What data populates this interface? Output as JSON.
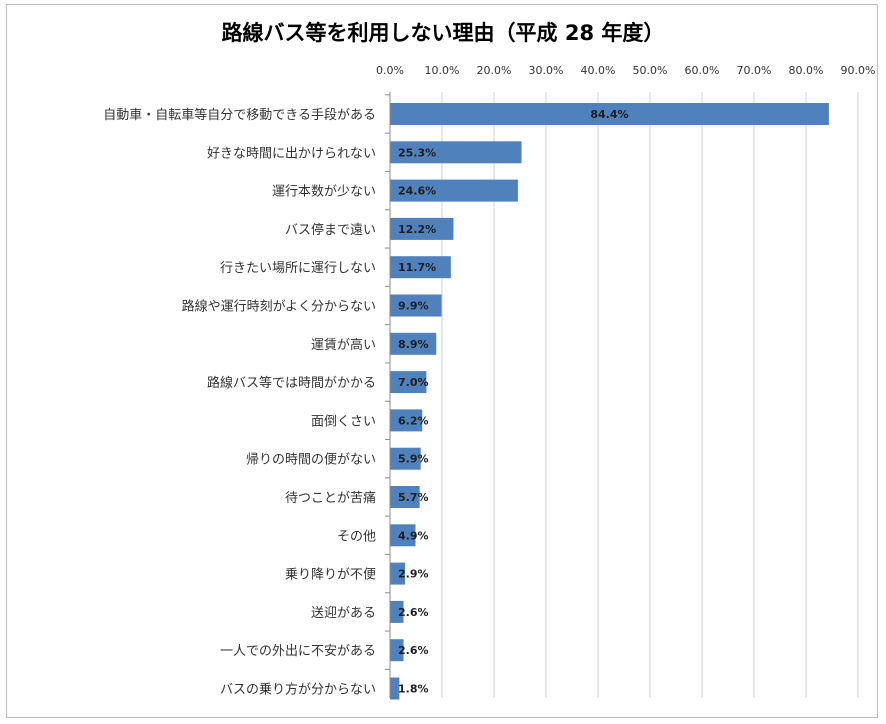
{
  "chart_data": {
    "type": "bar",
    "orientation": "horizontal",
    "title": "路線バス等を利用しない理由（平成 28 年度）",
    "xlabel": "",
    "ylabel": "",
    "xlim": [
      0,
      90
    ],
    "x_ticks": [
      "0.0%",
      "10.0%",
      "20.0%",
      "30.0%",
      "40.0%",
      "50.0%",
      "60.0%",
      "70.0%",
      "80.0%",
      "90.0%"
    ],
    "x_axis_position": "top",
    "grid": true,
    "legend": "none",
    "bar_color": "#4f81bd",
    "categories": [
      "自動車・自転車等自分で移動できる手段がある",
      "好きな時間に出かけられない",
      "運行本数が少ない",
      "バス停まで遠い",
      "行きたい場所に運行しない",
      "路線や運行時刻がよく分からない",
      "運賃が高い",
      "路線バス等では時間がかかる",
      "面倒くさい",
      "帰りの時間の便がない",
      "待つことが苦痛",
      "その他",
      "乗り降りが不便",
      "送迎がある",
      "一人での外出に不安がある",
      "バスの乗り方が分からない"
    ],
    "values": [
      84.4,
      25.3,
      24.6,
      12.2,
      11.7,
      9.9,
      8.9,
      7.0,
      6.2,
      5.9,
      5.7,
      4.9,
      2.9,
      2.6,
      2.6,
      1.8
    ],
    "data_labels": [
      "84.4%",
      "25.3%",
      "24.6%",
      "12.2%",
      "11.7%",
      "9.9%",
      "8.9%",
      "7.0%",
      "6.2%",
      "5.9%",
      "5.7%",
      "4.9%",
      "2.9%",
      "2.6%",
      "2.6%",
      "1.8%"
    ]
  }
}
